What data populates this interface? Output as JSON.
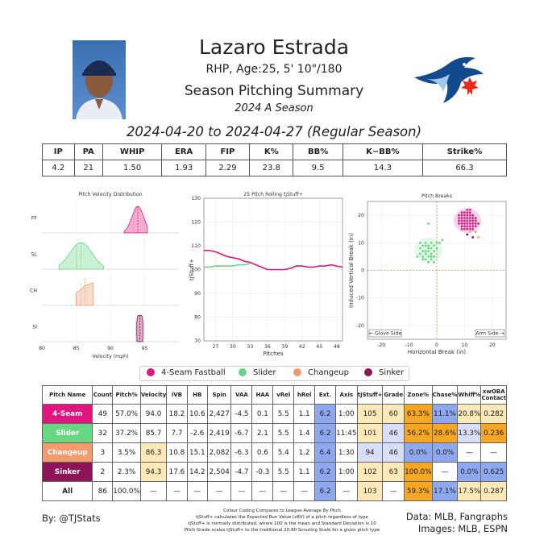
{
  "header": {
    "name": "Lazaro Estrada",
    "bio": "RHP, Age:25, 5' 10\"/180",
    "summary_title": "Season Pitching Summary",
    "season": "2024 A Season",
    "date_range": "2024-04-20 to 2024-04-27 (Regular Season)"
  },
  "summary_stats": {
    "headers": [
      "IP",
      "PA",
      "WHIP",
      "ERA",
      "FIP",
      "K%",
      "BB%",
      "K−BB%",
      "Strike%"
    ],
    "values": [
      "4.2",
      "21",
      "1.50",
      "1.93",
      "2.29",
      "23.8",
      "9.5",
      "14.3",
      "66.3"
    ]
  },
  "colors": {
    "4-Seam Fastball": "#e0157f",
    "Slider": "#67d783",
    "Changeup": "#f39b6d",
    "Sinker": "#8e1457",
    "good_strong": "#f5a623",
    "good_light": "#fde8b8",
    "bad_strong": "#8ea8ef",
    "bad_light": "#d6def8"
  },
  "chart_data": [
    {
      "type": "area",
      "title": "Pitch Velocity Distribution",
      "xlabel": "Velocity (mph)",
      "xlim": [
        80,
        100
      ],
      "xticks": [
        "80",
        "85",
        "90",
        "95"
      ],
      "series": [
        {
          "name": "FF",
          "mean": 94.0,
          "min": 92.0,
          "max": 95.4
        },
        {
          "name": "SL",
          "mean": 85.7,
          "min": 82.5,
          "max": 89.0
        },
        {
          "name": "CH",
          "mean": 86.3,
          "min": 85.0,
          "max": 87.5
        },
        {
          "name": "SI",
          "mean": 94.3,
          "min": 94.0,
          "max": 94.6
        }
      ]
    },
    {
      "type": "line",
      "title": "25 Pitch Rolling tjStuff+",
      "xlabel": "Pitches",
      "ylabel": "tjStuff+",
      "xlim": [
        25,
        49
      ],
      "ylim": [
        70,
        130
      ],
      "xticks": [
        27,
        30,
        33,
        36,
        39,
        42,
        45,
        48
      ],
      "yticks": [
        70,
        80,
        90,
        100,
        110,
        120,
        130
      ],
      "series": [
        {
          "name": "4-Seam Fastball",
          "x": [
            25,
            26,
            27,
            28,
            29,
            30,
            31,
            32,
            33,
            34,
            35,
            36,
            37,
            38,
            39,
            40,
            41,
            42,
            43,
            44,
            45,
            46,
            47,
            48,
            49
          ],
          "values": [
            108,
            108,
            107.5,
            106.5,
            105.5,
            105,
            104.5,
            103.5,
            103,
            102,
            101,
            100,
            100,
            100,
            100,
            100.5,
            101.5,
            101.5,
            101,
            101,
            101.5,
            101.5,
            102,
            101.5,
            101
          ]
        },
        {
          "name": "Slider",
          "x": [
            25,
            26,
            27,
            28,
            29,
            30,
            31,
            32,
            33
          ],
          "values": [
            101,
            101,
            101.5,
            101.5,
            101.5,
            101.5,
            102,
            102,
            102.5
          ]
        }
      ]
    },
    {
      "type": "scatter",
      "title": "Pitch Breaks",
      "xlabel": "Horizontal Break (in)",
      "ylabel": "Induced Vertical Break (in)",
      "xlim": [
        -25,
        25
      ],
      "ylim": [
        -25,
        25
      ],
      "ticks": [
        -20,
        -10,
        0,
        10,
        20
      ],
      "annotations": [
        "← Glove Side",
        "Arm Side →"
      ],
      "series": [
        {
          "name": "4-Seam Fastball",
          "points": [
            [
              8,
              20
            ],
            [
              9,
              21
            ],
            [
              10,
              19
            ],
            [
              11,
              20
            ],
            [
              12,
              18
            ],
            [
              9,
              18
            ],
            [
              10,
              17
            ],
            [
              11,
              17
            ],
            [
              12,
              20
            ],
            [
              13,
              19
            ],
            [
              8,
              17
            ],
            [
              9,
              16
            ],
            [
              10,
              15
            ],
            [
              11,
              16
            ],
            [
              12,
              16
            ],
            [
              13,
              17
            ],
            [
              14,
              18
            ],
            [
              10,
              21
            ],
            [
              11,
              22
            ],
            [
              12,
              21
            ],
            [
              9,
              19
            ],
            [
              13,
              15
            ],
            [
              14,
              16
            ],
            [
              11,
              19
            ],
            [
              12,
              17
            ],
            [
              10,
              18
            ],
            [
              8,
              19
            ],
            [
              13,
              20
            ],
            [
              11,
              18
            ],
            [
              12,
              19
            ],
            [
              9,
              17
            ],
            [
              10,
              16
            ],
            [
              14,
              17
            ],
            [
              11,
              15
            ],
            [
              13,
              18
            ],
            [
              10,
              20
            ],
            [
              12,
              15
            ],
            [
              9,
              20
            ],
            [
              15,
              17
            ],
            [
              11,
              21
            ],
            [
              8,
              18
            ],
            [
              12,
              22
            ],
            [
              13,
              16
            ],
            [
              10,
              19
            ],
            [
              14,
              19
            ],
            [
              11,
              17
            ],
            [
              12,
              18
            ],
            [
              10,
              17
            ],
            [
              9,
              15
            ]
          ]
        },
        {
          "name": "Slider",
          "points": [
            [
              -6,
              8
            ],
            [
              -5,
              7
            ],
            [
              -4,
              9
            ],
            [
              -3,
              8
            ],
            [
              -2,
              10
            ],
            [
              -1,
              9
            ],
            [
              0,
              10
            ],
            [
              1,
              10
            ],
            [
              2,
              11
            ],
            [
              -5,
              5
            ],
            [
              -4,
              6
            ],
            [
              -3,
              5
            ],
            [
              -2,
              6
            ],
            [
              -1,
              7
            ],
            [
              -6,
              6
            ],
            [
              -4,
              4
            ],
            [
              -3,
              3
            ],
            [
              -2,
              4
            ],
            [
              -5,
              9
            ],
            [
              -1,
              5
            ],
            [
              -3,
              7
            ],
            [
              -2,
              8
            ],
            [
              0,
              8
            ],
            [
              -4,
              7
            ],
            [
              -5,
              4
            ],
            [
              -3,
              9
            ],
            [
              -2,
              5
            ],
            [
              -1,
              3
            ],
            [
              -4,
              10
            ],
            [
              -6,
              10
            ],
            [
              -3,
              17
            ],
            [
              -7,
              5
            ]
          ]
        },
        {
          "name": "Changeup",
          "points": [
            [
              14,
              14
            ],
            [
              15,
              12
            ],
            [
              12,
              14
            ]
          ]
        },
        {
          "name": "Sinker",
          "points": [
            [
              11,
              13
            ],
            [
              13,
              12
            ]
          ]
        }
      ]
    }
  ],
  "legend": [
    "4-Seam Fastball",
    "Slider",
    "Changeup",
    "Sinker"
  ],
  "pitch_table": {
    "headers": [
      "Pitch Name",
      "Count",
      "Pitch%",
      "Velocity",
      "iVB",
      "HB",
      "Spin",
      "VAA",
      "HAA",
      "vRel",
      "hRel",
      "Ext.",
      "Axis",
      "tjStuff+",
      "Grade",
      "Zone%",
      "Chase%",
      "Whiff%",
      "xwOBA Contact"
    ],
    "rows": [
      {
        "name": "4-Seam",
        "color": "#e0157f",
        "cells": [
          "49",
          "57.0%",
          "94.0",
          "18.2",
          "10.6",
          "2,427",
          "-4.5",
          "0.1",
          "5.5",
          "1.1",
          "6.2",
          "1:00",
          "105",
          "60",
          "63.3%",
          "11.1%",
          "20.8%",
          "0.282"
        ]
      },
      {
        "name": "Slider",
        "color": "#67d783",
        "cells": [
          "32",
          "37.2%",
          "85.7",
          "7.7",
          "-2.6",
          "2,419",
          "-6.7",
          "2.1",
          "5.5",
          "1.4",
          "6.2",
          "11:45",
          "101",
          "46",
          "56.2%",
          "28.6%",
          "13.3%",
          "0.236"
        ]
      },
      {
        "name": "Changeup",
        "color": "#f39b6d",
        "cells": [
          "3",
          "3.5%",
          "86.3",
          "10.8",
          "15.1",
          "2,082",
          "-6.3",
          "0.6",
          "5.4",
          "1.2",
          "6.4",
          "1:30",
          "94",
          "46",
          "0.0%",
          "0.0%",
          "—",
          "—"
        ]
      },
      {
        "name": "Sinker",
        "color": "#8e1457",
        "cells": [
          "2",
          "2.3%",
          "94.3",
          "17.6",
          "14.2",
          "2,504",
          "-4.7",
          "-0.3",
          "5.5",
          "1.1",
          "6.2",
          "1:00",
          "102",
          "63",
          "100.0%",
          "—",
          "0.0%",
          "0.625"
        ]
      },
      {
        "name": "All",
        "color": "#ffffff",
        "cells": [
          "86",
          "100.0%",
          "—",
          "—",
          "—",
          "—",
          "—",
          "—",
          "—",
          "—",
          "6.2",
          "—",
          "103",
          "—",
          "59.3%",
          "17.1%",
          "17.5%",
          "0.287"
        ]
      }
    ],
    "cell_colors": [
      [
        "",
        "",
        "",
        "",
        "",
        "",
        "",
        "",
        "",
        "",
        "#8ea8ef",
        "",
        "#fde8b8",
        "#fde8b8",
        "#f5a623",
        "#8ea8ef",
        "#fde8b8",
        "#fde8b8"
      ],
      [
        "",
        "",
        "",
        "",
        "",
        "",
        "",
        "",
        "",
        "",
        "#8ea8ef",
        "",
        "#fde8b8",
        "#d6def8",
        "#f5a623",
        "#f5a623",
        "#d6def8",
        "#f5a623"
      ],
      [
        "",
        "",
        "#fde8b8",
        "",
        "",
        "",
        "",
        "",
        "",
        "",
        "#8ea8ef",
        "",
        "#d6def8",
        "#d6def8",
        "#8ea8ef",
        "#8ea8ef",
        "",
        ""
      ],
      [
        "",
        "",
        "#fde8b8",
        "",
        "",
        "",
        "",
        "",
        "",
        "",
        "#8ea8ef",
        "",
        "#fde8b8",
        "#fde8b8",
        "#f5a623",
        "",
        "#8ea8ef",
        "#8ea8ef"
      ],
      [
        "",
        "",
        "",
        "",
        "",
        "",
        "",
        "",
        "",
        "",
        "#8ea8ef",
        "",
        "#fde8b8",
        "",
        "#f5a623",
        "#8ea8ef",
        "#fde8b8",
        "#fde8b8"
      ]
    ]
  },
  "footer": {
    "handle": "By: @TJStats",
    "note_lines": [
      "Colour Coding Compares to League Average By Pitch",
      "tjStuff+ calculates the Expected Run Value (xRV) of a pitch regardless of type",
      "tjStuff+ is normally distributed, where 100 is the mean and Standard Deviation is 10",
      "Pitch Grade scales tjStuff+ to the traditional 20-80 Scouting Scale for a given pitch type"
    ],
    "source_data": "Data: MLB, Fangraphs",
    "source_images": "Images: MLB, ESPN"
  }
}
